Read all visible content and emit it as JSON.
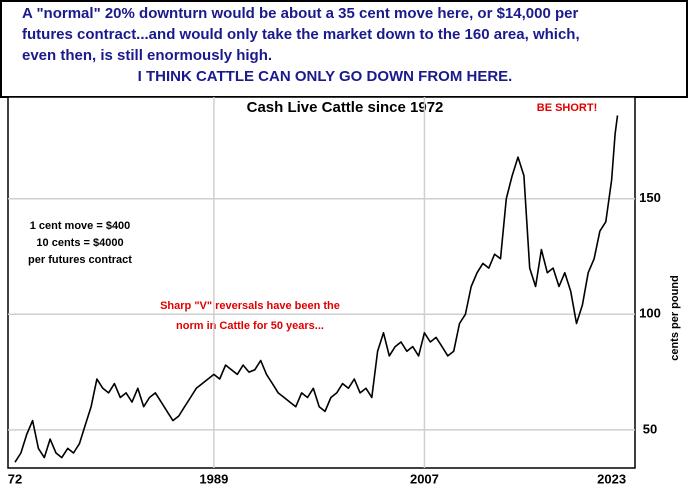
{
  "chart_data": {
    "type": "line",
    "headline": [
      "A \"normal\" 20% downturn would be about a 35 cent move here, or $14,000 per",
      "futures contract...and would only take the market down to the 160 area, which,",
      "even then, is still enormously high.",
      "I THINK CATTLE CAN ONLY GO DOWN FROM HERE."
    ],
    "title": "Cash Live Cattle since 1972",
    "callout": "BE SHORT!",
    "left_note": [
      "1 cent move = $400",
      "10 cents = $4000",
      "per futures contract"
    ],
    "red_note": [
      "Sharp \"V\" reversals have been the",
      "norm in Cattle for 50 years..."
    ],
    "ylabel": "cents per pound",
    "color": "#000000",
    "x": [
      1972,
      1972.5,
      1973,
      1973.5,
      1974,
      1974.5,
      1975,
      1975.5,
      1976,
      1976.5,
      1977,
      1977.5,
      1978,
      1978.5,
      1979,
      1979.5,
      1980,
      1980.5,
      1981,
      1981.5,
      1982,
      1982.5,
      1983,
      1983.5,
      1984,
      1984.5,
      1985,
      1985.5,
      1986,
      1986.5,
      1987,
      1987.5,
      1988,
      1988.5,
      1989,
      1989.5,
      1990,
      1990.5,
      1991,
      1991.5,
      1992,
      1992.5,
      1993,
      1993.5,
      1994,
      1994.5,
      1995,
      1995.5,
      1996,
      1996.5,
      1997,
      1997.5,
      1998,
      1998.5,
      1999,
      1999.5,
      2000,
      2000.5,
      2001,
      2001.5,
      2002,
      2002.5,
      2003,
      2003.5,
      2004,
      2004.5,
      2005,
      2005.5,
      2006,
      2006.5,
      2007,
      2007.5,
      2008,
      2008.5,
      2009,
      2009.5,
      2010,
      2010.5,
      2011,
      2011.5,
      2012,
      2012.5,
      2013,
      2013.5,
      2014,
      2014.5,
      2015,
      2015.5,
      2016,
      2016.5,
      2017,
      2017.5,
      2018,
      2018.5,
      2019,
      2019.5,
      2020,
      2020.5,
      2021,
      2021.5,
      2022,
      2022.5,
      2023,
      2023.3,
      2023.5
    ],
    "values": [
      36,
      40,
      48,
      54,
      42,
      38,
      46,
      40,
      38,
      42,
      40,
      44,
      52,
      60,
      72,
      68,
      66,
      70,
      64,
      66,
      62,
      68,
      60,
      64,
      66,
      62,
      58,
      54,
      56,
      60,
      64,
      68,
      70,
      72,
      74,
      72,
      78,
      76,
      74,
      78,
      75,
      76,
      80,
      74,
      70,
      66,
      64,
      62,
      60,
      66,
      64,
      68,
      60,
      58,
      64,
      66,
      70,
      68,
      72,
      66,
      68,
      64,
      84,
      92,
      82,
      86,
      88,
      84,
      86,
      82,
      92,
      88,
      90,
      86,
      82,
      84,
      96,
      100,
      112,
      118,
      122,
      120,
      126,
      124,
      150,
      160,
      168,
      160,
      120,
      112,
      128,
      118,
      120,
      112,
      118,
      110,
      96,
      104,
      118,
      124,
      136,
      140,
      158,
      178,
      186
    ],
    "xlim": [
      1971.4,
      2025
    ],
    "ylim": [
      33.5,
      194
    ],
    "xticks": [
      {
        "value": 1972,
        "label": "72"
      },
      1989,
      2007,
      2023
    ],
    "yticks": [
      50,
      100,
      150
    ],
    "grid": true
  }
}
